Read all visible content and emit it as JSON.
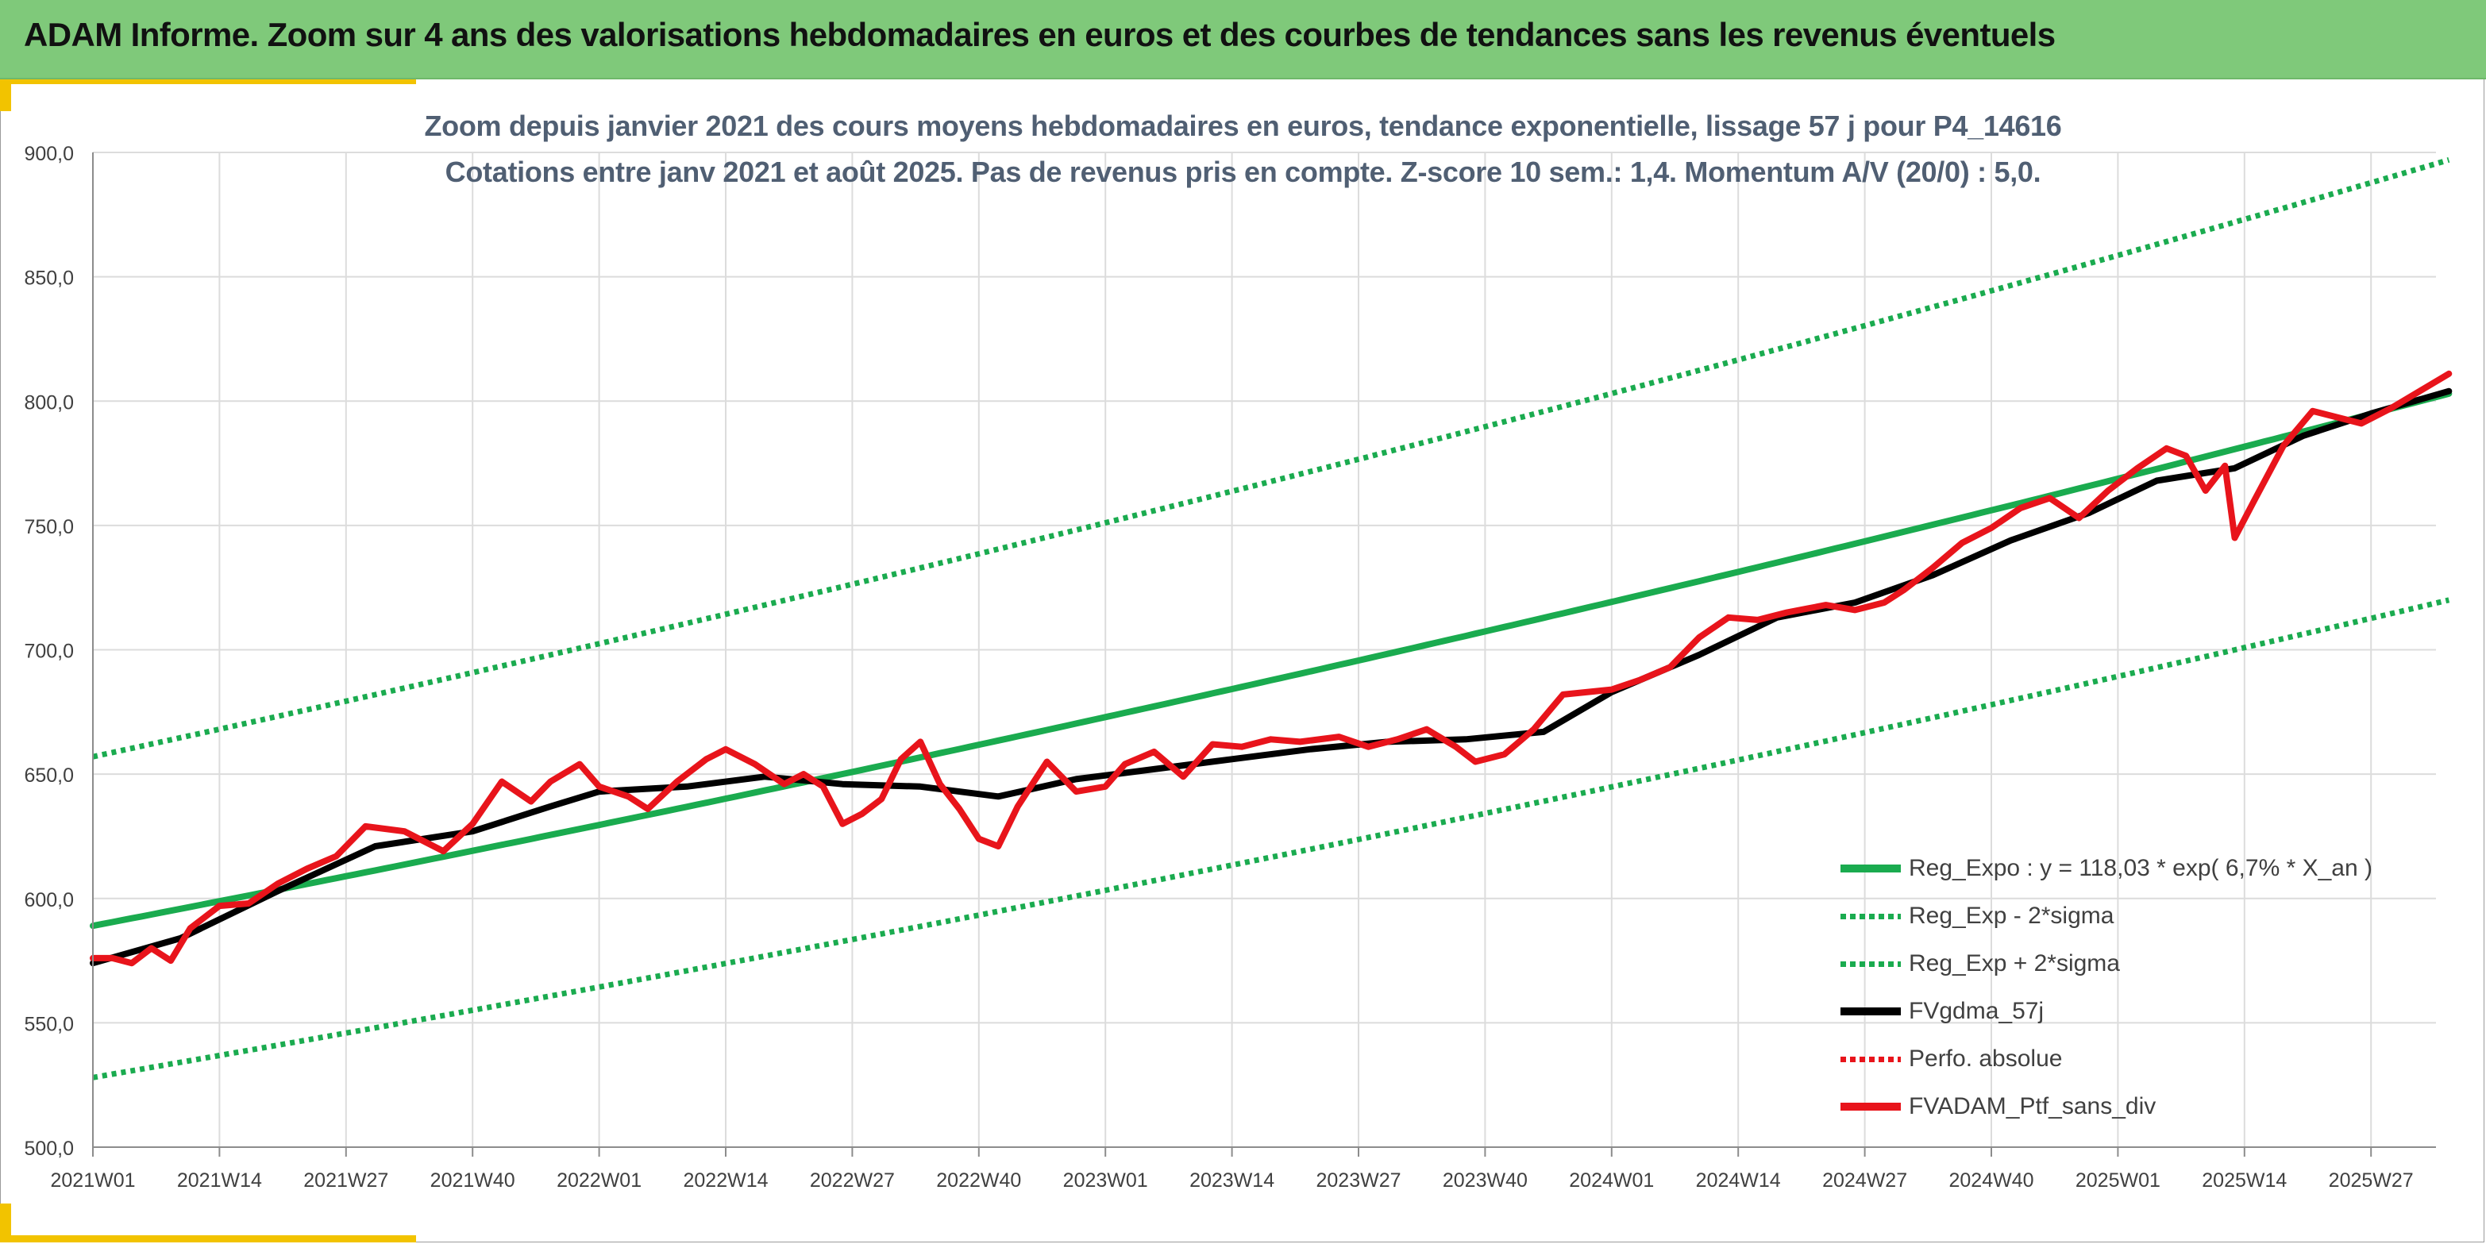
{
  "header": {
    "title": "ADAM Informe. Zoom sur 4 ans des valorisations hebdomadaires en euros et des courbes de tendances sans les revenus éventuels"
  },
  "colors": {
    "header_band": "#7fc97a",
    "corner_accent": "#f2c300",
    "reg_expo": "#1aab4f",
    "sigma_band": "#1aab4f",
    "fvgdma": "#000000",
    "perfo": "#e8141b",
    "fvadam": "#e8141b",
    "grid": "#dcdcdc",
    "axis_text": "#404040",
    "subtitle": "#505f73"
  },
  "chart_data": {
    "type": "line",
    "title_lines": [
      "Zoom depuis janvier 2021 des cours moyens hebdomadaires en euros, tendance exponentielle, lissage 57 j pour P4_14616",
      "Cotations entre janv 2021 et août 2025. Pas de revenus pris en compte. Z-score 10 sem.: 1,4. Momentum A/V (20/0) : 5,0."
    ],
    "x_tick_labels": [
      "2021W01",
      "2021W14",
      "2021W27",
      "2021W40",
      "2022W01",
      "2022W14",
      "2022W27",
      "2022W40",
      "2023W01",
      "2023W14",
      "2023W27",
      "2023W40",
      "2024W01",
      "2024W14",
      "2024W27",
      "2024W40",
      "2025W01",
      "2025W14",
      "2025W27"
    ],
    "y_tick_labels": [
      "500,0",
      "550,0",
      "600,0",
      "650,0",
      "700,0",
      "750,0",
      "800,0",
      "850,0",
      "900,0"
    ],
    "x_range": [
      "2021W01",
      "2025W35"
    ],
    "ylim": [
      500,
      900
    ],
    "grid": true,
    "legend_position": "bottom-right",
    "series": [
      {
        "name": "Reg_Expo : y = 118,03 * exp( 6,7% *  X_an )",
        "style": "solid-thick",
        "color": "#1aab4f",
        "x": [
          "2021W01",
          "2025W35"
        ],
        "y": [
          589,
          803
        ],
        "curve": "exponential"
      },
      {
        "name": "Reg_Exp - 2*sigma",
        "style": "dotted",
        "color": "#1aab4f",
        "x": [
          "2021W01",
          "2025W35"
        ],
        "y": [
          528,
          720
        ],
        "curve": "exponential"
      },
      {
        "name": "Reg_Exp + 2*sigma",
        "style": "dotted",
        "color": "#1aab4f",
        "x": [
          "2021W01",
          "2025W35"
        ],
        "y": [
          657,
          897
        ],
        "curve": "exponential"
      },
      {
        "name": "FVgdma_57j",
        "style": "solid-thick",
        "color": "#000000",
        "x": [
          "2021W01",
          "2021W10",
          "2021W20",
          "2021W30",
          "2021W40",
          "2021W48",
          "2022W01",
          "2022W10",
          "2022W18",
          "2022W26",
          "2022W34",
          "2022W42",
          "2022W50",
          "2023W06",
          "2023W14",
          "2023W22",
          "2023W30",
          "2023W38",
          "2023W46",
          "2024W01",
          "2024W10",
          "2024W18",
          "2024W26",
          "2024W34",
          "2024W42",
          "2024W50",
          "2025W05",
          "2025W13",
          "2025W20",
          "2025W27",
          "2025W35"
        ],
        "y": [
          574,
          584,
          603,
          621,
          627,
          637,
          643,
          645,
          649,
          646,
          645,
          641,
          648,
          652,
          656,
          660,
          663,
          664,
          667,
          683,
          698,
          713,
          719,
          730,
          744,
          755,
          768,
          773,
          786,
          795,
          804
        ]
      },
      {
        "name": "Perfo. absolue",
        "style": "dotted",
        "color": "#e8141b",
        "x": [],
        "y": []
      },
      {
        "name": "FVADAM_Ptf_sans_div",
        "style": "solid-thick",
        "color": "#e8141b",
        "x": [
          "2021W01",
          "2021W03",
          "2021W05",
          "2021W07",
          "2021W09",
          "2021W11",
          "2021W14",
          "2021W17",
          "2021W20",
          "2021W23",
          "2021W26",
          "2021W29",
          "2021W33",
          "2021W37",
          "2021W40",
          "2021W43",
          "2021W46",
          "2021W48",
          "2021W51",
          "2022W01",
          "2022W04",
          "2022W06",
          "2022W09",
          "2022W12",
          "2022W14",
          "2022W17",
          "2022W20",
          "2022W22",
          "2022W24",
          "2022W26",
          "2022W28",
          "2022W30",
          "2022W32",
          "2022W34",
          "2022W36",
          "2022W38",
          "2022W40",
          "2022W42",
          "2022W44",
          "2022W47",
          "2022W50",
          "2023W01",
          "2023W03",
          "2023W06",
          "2023W09",
          "2023W12",
          "2023W15",
          "2023W18",
          "2023W21",
          "2023W25",
          "2023W28",
          "2023W31",
          "2023W34",
          "2023W37",
          "2023W39",
          "2023W42",
          "2023W45",
          "2023W48",
          "2024W01",
          "2024W04",
          "2024W07",
          "2024W10",
          "2024W13",
          "2024W16",
          "2024W19",
          "2024W23",
          "2024W26",
          "2024W29",
          "2024W31",
          "2024W34",
          "2024W37",
          "2024W40",
          "2024W43",
          "2024W46",
          "2024W49",
          "2024W52",
          "2025W03",
          "2025W06",
          "2025W08",
          "2025W10",
          "2025W12",
          "2025W13",
          "2025W15",
          "2025W18",
          "2025W21",
          "2025W23",
          "2025W26",
          "2025W29",
          "2025W32",
          "2025W35"
        ],
        "y": [
          576,
          576,
          574,
          580,
          575,
          588,
          597,
          598,
          606,
          612,
          617,
          629,
          627,
          619,
          630,
          647,
          639,
          647,
          654,
          645,
          641,
          636,
          647,
          656,
          660,
          654,
          646,
          650,
          645,
          630,
          634,
          640,
          656,
          663,
          646,
          636,
          624,
          621,
          637,
          655,
          643,
          645,
          654,
          659,
          649,
          662,
          661,
          664,
          663,
          665,
          661,
          664,
          668,
          661,
          655,
          658,
          668,
          682,
          684,
          688,
          693,
          705,
          713,
          712,
          715,
          718,
          716,
          719,
          724,
          733,
          743,
          749,
          757,
          761,
          753,
          764,
          773,
          781,
          778,
          764,
          774,
          745,
          760,
          782,
          796,
          794,
          791,
          797,
          804,
          811
        ]
      }
    ]
  },
  "legend": [
    {
      "label": "Reg_Expo : y = 118,03 * exp( 6,7% *  X_an )",
      "style": "solid-green"
    },
    {
      "label": "Reg_Exp - 2*sigma",
      "style": "dotted-green"
    },
    {
      "label": "Reg_Exp + 2*sigma",
      "style": "dotted-green"
    },
    {
      "label": "FVgdma_57j",
      "style": "solid-black"
    },
    {
      "label": "Perfo. absolue",
      "style": "dotted-red"
    },
    {
      "label": "FVADAM_Ptf_sans_div",
      "style": "solid-red"
    }
  ]
}
